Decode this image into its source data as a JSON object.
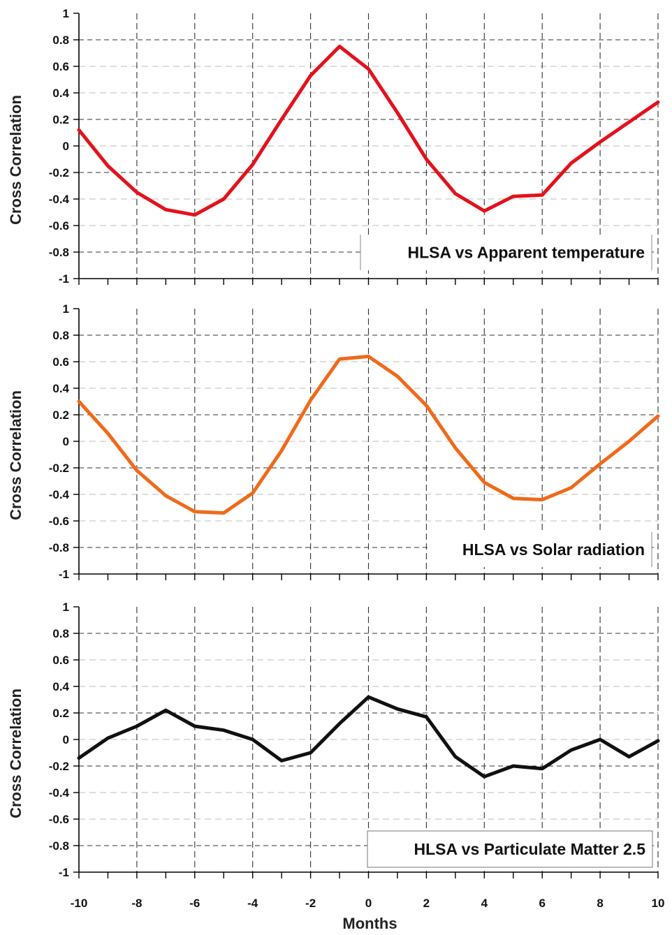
{
  "chart_data": [
    {
      "type": "line",
      "title": "HLSA vs Apparent temperature",
      "xlabel": "",
      "ylabel": "Cross Correlation",
      "xlim": [
        -10,
        10
      ],
      "ylim": [
        -1,
        1
      ],
      "color": "#e3121b",
      "legend_position": "bottom-right",
      "x": [
        -10,
        -9,
        -8,
        -7,
        -6,
        -5,
        -4,
        -3,
        -2,
        -1,
        0,
        1,
        2,
        3,
        4,
        5,
        6,
        7,
        8,
        9,
        10
      ],
      "values": [
        0.12,
        -0.15,
        -0.35,
        -0.48,
        -0.52,
        -0.4,
        -0.14,
        0.2,
        0.53,
        0.75,
        0.58,
        0.25,
        -0.1,
        -0.36,
        -0.49,
        -0.38,
        -0.37,
        -0.13,
        0.03,
        0.18,
        0.33
      ]
    },
    {
      "type": "line",
      "title": "HLSA vs Solar radiation",
      "xlabel": "",
      "ylabel": "Cross Correlation",
      "xlim": [
        -10,
        10
      ],
      "ylim": [
        -1,
        1
      ],
      "color": "#ef6a1a",
      "legend_position": "bottom-right",
      "x": [
        -10,
        -9,
        -8,
        -7,
        -6,
        -5,
        -4,
        -3,
        -2,
        -1,
        0,
        1,
        2,
        3,
        4,
        5,
        6,
        7,
        8,
        9,
        10
      ],
      "values": [
        0.3,
        0.06,
        -0.22,
        -0.41,
        -0.53,
        -0.54,
        -0.39,
        -0.07,
        0.31,
        0.62,
        0.64,
        0.49,
        0.27,
        -0.05,
        -0.31,
        -0.43,
        -0.44,
        -0.35,
        -0.17,
        0.0,
        0.19
      ]
    },
    {
      "type": "line",
      "title": "HLSA vs Particulate Matter 2.5",
      "xlabel": "Months",
      "ylabel": "Cross Correlation",
      "xlim": [
        -10,
        10
      ],
      "ylim": [
        -1,
        1
      ],
      "color": "#111111",
      "legend_position": "bottom-right",
      "x": [
        -10,
        -9,
        -8,
        -7,
        -6,
        -5,
        -4,
        -3,
        -2,
        -1,
        0,
        1,
        2,
        3,
        4,
        5,
        6,
        7,
        8,
        9,
        10
      ],
      "values": [
        -0.14,
        0.01,
        0.1,
        0.22,
        0.1,
        0.07,
        0.0,
        -0.16,
        -0.1,
        0.12,
        0.32,
        0.23,
        0.17,
        -0.13,
        -0.28,
        -0.2,
        -0.22,
        -0.08,
        0.0,
        -0.13,
        -0.01
      ]
    }
  ],
  "axes": {
    "y_ticks": [
      "1",
      "0.8",
      "0.6",
      "0.4",
      "0.2",
      "0",
      "-0.2",
      "-0.4",
      "-0.6",
      "-0.8",
      "-1"
    ],
    "x_ticks": [
      "-10",
      "-8",
      "-6",
      "-4",
      "-2",
      "0",
      "2",
      "4",
      "6",
      "8",
      "10"
    ]
  }
}
